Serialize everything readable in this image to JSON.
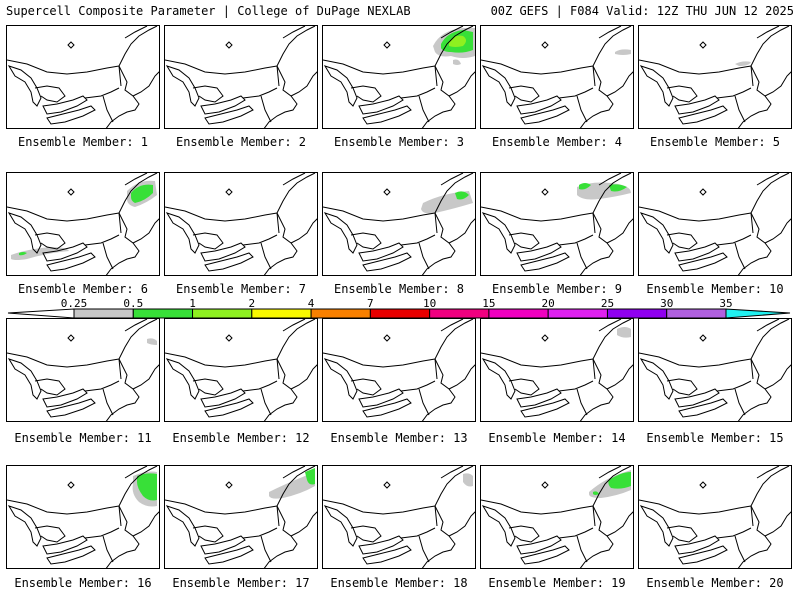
{
  "header": {
    "left_title": "Supercell Composite Parameter | College of DuPage NEXLAB",
    "right_title": "00Z GEFS | F084 Valid: 12Z THU JUN 12 2025"
  },
  "colorbar": {
    "ticks": [
      "0.25",
      "0.5",
      "1",
      "2",
      "4",
      "7",
      "10",
      "15",
      "20",
      "25",
      "30",
      "35"
    ],
    "colors": [
      "#c8c8c8",
      "#38e038",
      "#8ef020",
      "#f8f800",
      "#f88000",
      "#e80000",
      "#f00080",
      "#f000c0",
      "#e020f0",
      "#9000f0",
      "#b060e0",
      "#20f0f0"
    ]
  },
  "panels": [
    {
      "label": "Ensemble Member: 1"
    },
    {
      "label": "Ensemble Member: 2"
    },
    {
      "label": "Ensemble Member: 3"
    },
    {
      "label": "Ensemble Member: 4"
    },
    {
      "label": "Ensemble Member: 5"
    },
    {
      "label": "Ensemble Member: 6"
    },
    {
      "label": "Ensemble Member: 7"
    },
    {
      "label": "Ensemble Member: 8"
    },
    {
      "label": "Ensemble Member: 9"
    },
    {
      "label": "Ensemble Member: 10"
    },
    {
      "label": "Ensemble Member: 11"
    },
    {
      "label": "Ensemble Member: 12"
    },
    {
      "label": "Ensemble Member: 13"
    },
    {
      "label": "Ensemble Member: 14"
    },
    {
      "label": "Ensemble Member: 15"
    },
    {
      "label": "Ensemble Member: 16"
    },
    {
      "label": "Ensemble Member: 17"
    },
    {
      "label": "Ensemble Member: 18"
    },
    {
      "label": "Ensemble Member: 19"
    },
    {
      "label": "Ensemble Member: 20"
    }
  ]
}
